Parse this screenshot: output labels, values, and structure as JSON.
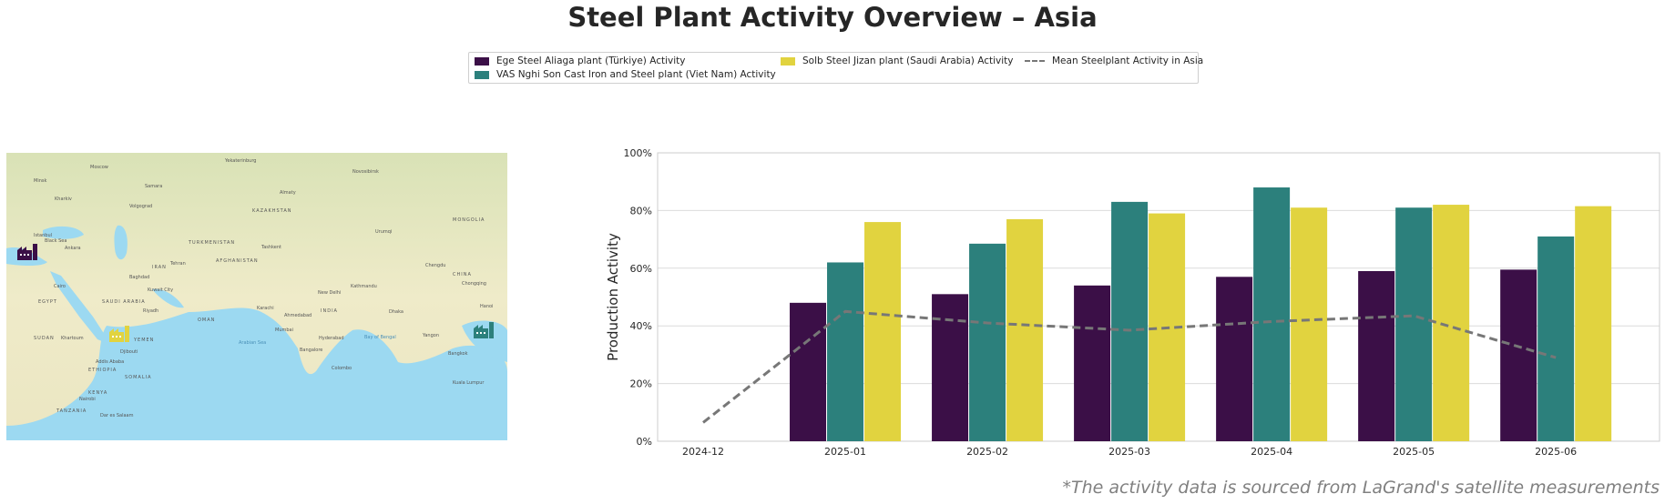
{
  "title": "Steel Plant Activity Overview – Asia",
  "footnote": "*The activity data is sourced from LaGrand's satellite measurements",
  "legend": {
    "placement": "top-center",
    "items": [
      {
        "label": "Ege Steel Aliaga plant (Türkiye) Activity",
        "color": "#3b0f47",
        "kind": "bar"
      },
      {
        "label": "VAS Nghi Son Cast Iron and Steel plant (Viet Nam) Activity",
        "color": "#2c807c",
        "kind": "bar"
      },
      {
        "label": "Solb Steel Jizan plant (Saudi Arabia) Activity",
        "color": "#e1d33f",
        "kind": "bar"
      },
      {
        "label": "Mean Steelplant Activity in Asia",
        "color": "#777777",
        "kind": "dashed-line"
      }
    ]
  },
  "map": {
    "labels": {
      "sea": [
        "Arabian Sea",
        "Bay of Bengal",
        "Black Sea"
      ],
      "region": [
        "KAZAKHSTAN",
        "MONGOLIA",
        "CHINA",
        "INDIA",
        "IRAN",
        "SAUDI ARABIA",
        "TURKMENISTAN",
        "AFGHANISTAN",
        "SUDAN",
        "ETHIOPIA",
        "SOMALIA",
        "EGYPT",
        "OMAN",
        "YEMEN",
        "TANZANIA",
        "KENYA"
      ],
      "city": [
        "Moscow",
        "Yekaterinburg",
        "Novosibirsk",
        "Almaty",
        "Urumqi",
        "Tashkent",
        "Tehran",
        "Baghdad",
        "Riyadh",
        "Kuwait City",
        "Karachi",
        "Ahmedabad",
        "New Delhi",
        "Kathmandu",
        "Mumbai",
        "Hyderabad",
        "Bangalore",
        "Colombo",
        "Yangon",
        "Bangkok",
        "Hanoi",
        "Kuala Lumpur",
        "Dhaka",
        "Chengdu",
        "Addis Ababa",
        "Nairobi",
        "Dar es Salaam",
        "Djibouti",
        "Khartoum",
        "Cairo",
        "Ankara",
        "Istanbul",
        "Volgograd",
        "Samara",
        "Kharkiv",
        "Minsk",
        "Chongqing"
      ]
    },
    "markers": [
      {
        "plant": "Ege Steel Aliaga plant",
        "icon": "factory-icon",
        "color": "#3b0f47"
      },
      {
        "plant": "Solb Steel Jizan plant",
        "icon": "factory-icon",
        "color": "#e1d33f"
      },
      {
        "plant": "VAS Nghi Son Cast Iron and Steel plant",
        "icon": "factory-icon",
        "color": "#2c807c"
      }
    ]
  },
  "chart_data": {
    "type": "bar",
    "title": "",
    "xlabel": "",
    "ylabel": "Production Activity",
    "ylim": [
      0,
      100
    ],
    "yticks": [
      "0%",
      "20%",
      "40%",
      "60%",
      "80%",
      "100%"
    ],
    "ytick_values": [
      0,
      20,
      40,
      60,
      80,
      100
    ],
    "grid": true,
    "categories": [
      "2024-12",
      "2025-01",
      "2025-02",
      "2025-03",
      "2025-04",
      "2025-05",
      "2025-06"
    ],
    "series": [
      {
        "name": "Ege Steel Aliaga plant (Türkiye) Activity",
        "color": "#3b0f47",
        "values": [
          null,
          48,
          51,
          54,
          57,
          59,
          59.5
        ]
      },
      {
        "name": "VAS Nghi Son Cast Iron and Steel plant (Viet Nam) Activity",
        "color": "#2c807c",
        "values": [
          null,
          62,
          68.5,
          83,
          88,
          81,
          71
        ]
      },
      {
        "name": "Solb Steel Jizan plant (Saudi Arabia) Activity",
        "color": "#e1d33f",
        "values": [
          null,
          76,
          77,
          79,
          81,
          82,
          81.5
        ]
      }
    ],
    "line": {
      "name": "Mean Steelplant Activity in Asia",
      "color": "#777777",
      "values": [
        6.5,
        45,
        41,
        38.5,
        41.5,
        43.5,
        29
      ]
    }
  }
}
